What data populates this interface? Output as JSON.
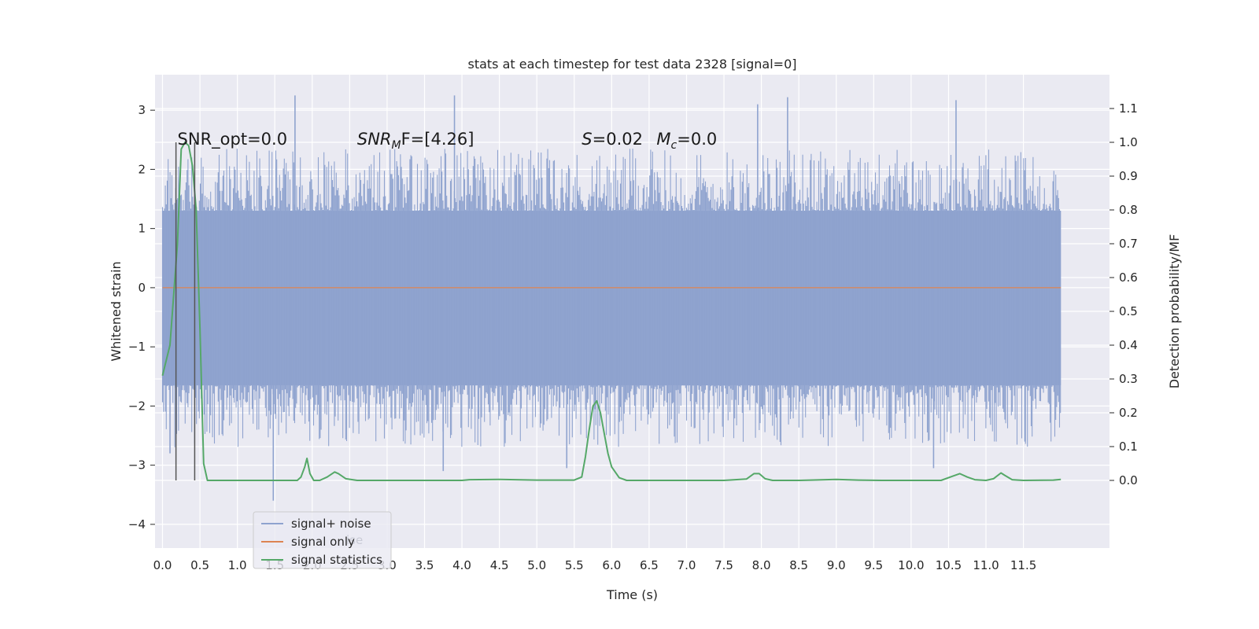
{
  "chart_data": {
    "type": "line",
    "title": "stats at each timestep for test data 2328 [signal=0]",
    "xlabel": "Time (s)",
    "ylabel": "Whitened strain",
    "ylabel_right": "Detection probability/MF",
    "xlim": [
      -0.1,
      12.65
    ],
    "ylim": [
      -4.4,
      3.6
    ],
    "ylim_right": [
      -0.2,
      1.2
    ],
    "xticks": [
      0.0,
      0.5,
      1.0,
      1.5,
      2.0,
      2.5,
      3.0,
      3.5,
      4.0,
      4.5,
      5.0,
      5.5,
      6.0,
      6.5,
      7.0,
      7.5,
      8.0,
      8.5,
      9.0,
      9.5,
      10.0,
      10.5,
      11.0,
      11.5
    ],
    "xtick_labels": [
      "0.0",
      "0.5",
      "1.0",
      "1.5",
      "2.0",
      "2.5",
      "3.0",
      "3.5",
      "4.0",
      "4.5",
      "5.0",
      "5.5",
      "6.0",
      "6.5",
      "7.0",
      "7.5",
      "8.0",
      "8.5",
      "9.0",
      "9.5",
      "10.0",
      "10.5",
      "11.0",
      "11.5"
    ],
    "yticks": [
      3,
      2,
      1,
      0,
      -1,
      -2,
      -3,
      -4
    ],
    "ytick_labels": [
      "3",
      "2",
      "1",
      "0",
      "−1",
      "−2",
      "−3",
      "−4"
    ],
    "yticks_right": [
      1.1,
      1.0,
      0.9,
      0.8,
      0.7,
      0.6,
      0.5,
      0.4,
      0.3,
      0.2,
      0.1,
      0.0
    ],
    "ytick_labels_right": [
      "1.1",
      "1.0",
      "0.9",
      "0.8",
      "0.7",
      "0.6",
      "0.5",
      "0.4",
      "0.3",
      "0.2",
      "0.1",
      "0.0"
    ],
    "grid": true,
    "legend_position": "lower-left",
    "series": [
      {
        "name": "signal+ noise",
        "axis": "left",
        "color": "#8fa3cf",
        "x_range": [
          0.0,
          12.0
        ],
        "core_band": [
          -1.65,
          1.3
        ],
        "spike_peaks": [
          {
            "x": 1.77,
            "y": 3.25
          },
          {
            "x": 3.9,
            "y": 3.25
          },
          {
            "x": 8.35,
            "y": 3.22
          },
          {
            "x": 10.6,
            "y": 3.17
          },
          {
            "x": 7.95,
            "y": 3.1
          },
          {
            "x": 1.48,
            "y": -3.6
          },
          {
            "x": 10.3,
            "y": -3.05
          },
          {
            "x": 5.4,
            "y": -3.05
          },
          {
            "x": 0.1,
            "y": -2.8
          },
          {
            "x": 3.75,
            "y": -3.1
          }
        ]
      },
      {
        "name": "signal only",
        "axis": "left",
        "color": "#dd8452",
        "x": [
          0.0,
          12.0
        ],
        "y": [
          0.0,
          0.0
        ]
      },
      {
        "name": "signal statistics",
        "axis": "right",
        "color": "#55a868",
        "x": [
          0.0,
          0.1,
          0.2,
          0.25,
          0.3,
          0.35,
          0.4,
          0.45,
          0.5,
          0.55,
          0.6,
          0.65,
          0.75,
          1.0,
          1.5,
          1.8,
          1.85,
          1.9,
          1.93,
          1.97,
          2.02,
          2.1,
          2.2,
          2.3,
          2.35,
          2.45,
          2.6,
          3.0,
          4.0,
          4.1,
          4.5,
          5.0,
          5.5,
          5.6,
          5.65,
          5.7,
          5.75,
          5.8,
          5.85,
          5.9,
          5.95,
          6.0,
          6.1,
          6.2,
          6.4,
          7.0,
          7.5,
          7.8,
          7.9,
          7.97,
          8.05,
          8.15,
          8.5,
          9.0,
          9.3,
          9.6,
          10.0,
          10.4,
          10.55,
          10.65,
          10.75,
          10.85,
          11.0,
          11.1,
          11.2,
          11.25,
          11.35,
          11.5,
          11.9,
          12.0
        ],
        "y": [
          0.31,
          0.4,
          0.7,
          0.98,
          1.0,
          0.99,
          0.93,
          0.8,
          0.45,
          0.05,
          0.0,
          0.0,
          0.0,
          0.0,
          0.0,
          0.0,
          0.01,
          0.04,
          0.065,
          0.02,
          0.0,
          0.0,
          0.01,
          0.025,
          0.02,
          0.005,
          0.0,
          0.0,
          0.0,
          0.002,
          0.003,
          0.001,
          0.001,
          0.01,
          0.07,
          0.15,
          0.22,
          0.235,
          0.2,
          0.14,
          0.08,
          0.04,
          0.008,
          0.0,
          0.0,
          0.0,
          0.0,
          0.004,
          0.02,
          0.02,
          0.005,
          0.0,
          0.0,
          0.003,
          0.001,
          0.0,
          0.0,
          0.0,
          0.012,
          0.02,
          0.01,
          0.002,
          0.0,
          0.005,
          0.022,
          0.015,
          0.002,
          0.0,
          0.001,
          0.003
        ]
      }
    ],
    "markers": {
      "color": "#555555",
      "x": [
        0.18,
        0.43
      ],
      "y_from": 0.0,
      "y_to": 1.0
    },
    "annotations": [
      {
        "id": "snr-opt",
        "text": "SNR_opt=0.0",
        "x": 0.2,
        "y": 1.0
      },
      {
        "id": "snr-mf",
        "text_main": "SNR",
        "text_sub": "M",
        "text_rest": "F=[4.26]",
        "x": 2.6,
        "y": 1.0
      },
      {
        "id": "s-value",
        "text_main": "S",
        "text_rest": "=0.02",
        "x": 5.6,
        "y": 1.0
      },
      {
        "id": "mc-value",
        "text_main": "M",
        "text_sub": "c",
        "text_rest": "=0.0",
        "x": 6.6,
        "y": 1.0
      }
    ],
    "legend": [
      {
        "label": "signal+ noise",
        "color": "#8fa3cf"
      },
      {
        "label": "signal only",
        "color": "#dd8452"
      },
      {
        "label": "signal statistics",
        "color": "#55a868"
      }
    ],
    "legend_ghost_text": "ise"
  }
}
